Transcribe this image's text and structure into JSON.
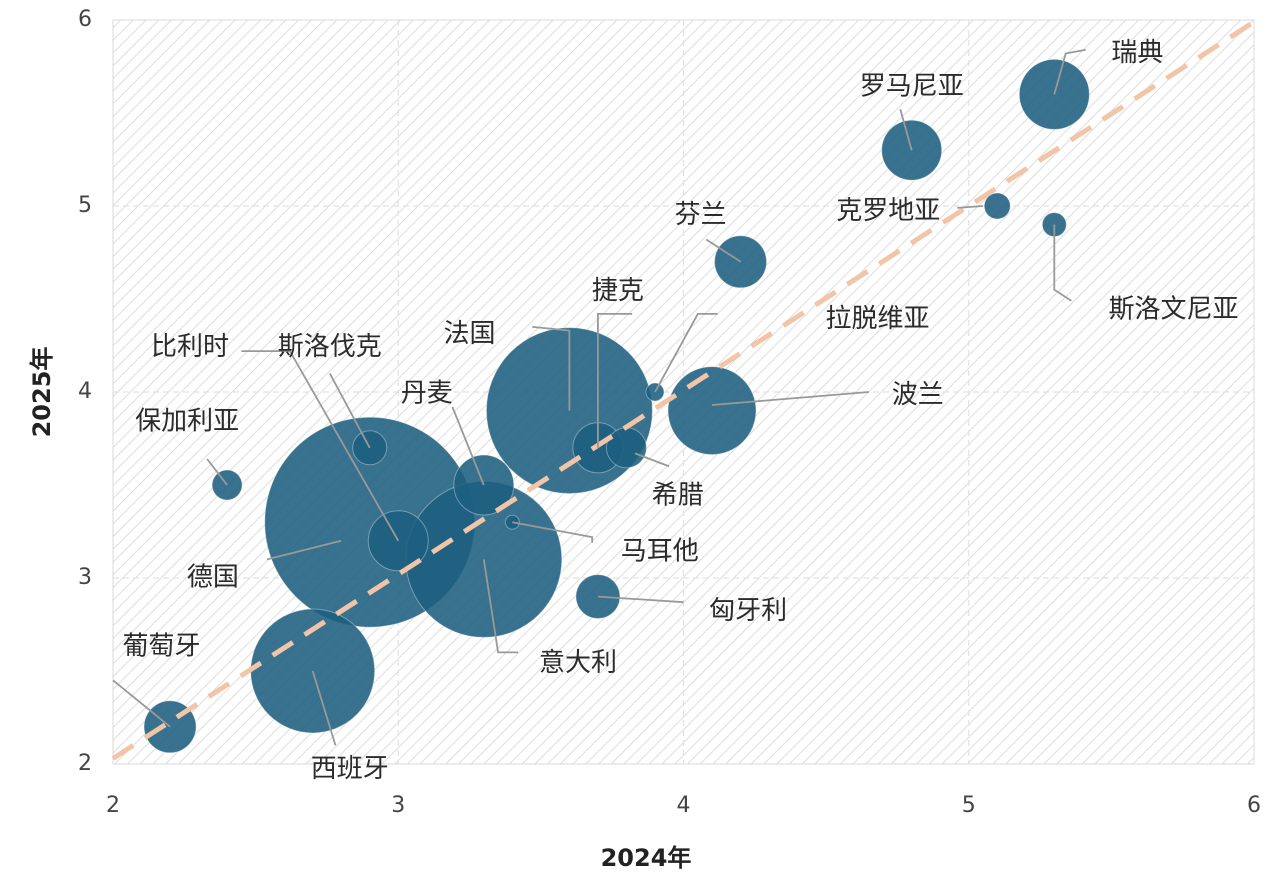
{
  "chart_data": {
    "type": "scatter",
    "xlabel": "2024年",
    "ylabel": "2025年",
    "xlim": [
      2,
      6
    ],
    "ylim": [
      2,
      6
    ],
    "xticks": [
      "2",
      "3",
      "4",
      "5",
      "6"
    ],
    "yticks": [
      "2",
      "3",
      "4",
      "5",
      "6"
    ],
    "grid": true,
    "reference_line": "y = x",
    "colors": {
      "bubble": "#1d5f80",
      "reference_line": "#f2c4a8",
      "leader": "#999999",
      "hatch": "#cfcfcf"
    },
    "points": [
      {
        "label": "瑞典",
        "x": 5.3,
        "y": 5.6,
        "size": 35
      },
      {
        "label": "罗马尼亚",
        "x": 4.8,
        "y": 5.3,
        "size": 30
      },
      {
        "label": "克罗地亚",
        "x": 5.1,
        "y": 5.0,
        "size": 13
      },
      {
        "label": "斯洛文尼亚",
        "x": 5.3,
        "y": 4.9,
        "size": 12
      },
      {
        "label": "芬兰",
        "x": 4.2,
        "y": 4.7,
        "size": 26
      },
      {
        "label": "拉脱维亚",
        "x": 3.9,
        "y": 4.0,
        "size": 9
      },
      {
        "label": "波兰",
        "x": 4.1,
        "y": 3.9,
        "size": 44
      },
      {
        "label": "法国",
        "x": 3.6,
        "y": 3.9,
        "size": 83
      },
      {
        "label": "捷克",
        "x": 3.7,
        "y": 3.7,
        "size": 25
      },
      {
        "label": "希腊",
        "x": 3.8,
        "y": 3.7,
        "size": 20
      },
      {
        "label": "比利时",
        "x": 3.0,
        "y": 3.2,
        "size": 30
      },
      {
        "label": "斯洛伐克",
        "x": 2.9,
        "y": 3.7,
        "size": 17
      },
      {
        "label": "丹麦",
        "x": 3.3,
        "y": 3.5,
        "size": 30
      },
      {
        "label": "保加利亚",
        "x": 2.4,
        "y": 3.5,
        "size": 15
      },
      {
        "label": "德国",
        "x": 2.9,
        "y": 3.3,
        "size": 105
      },
      {
        "label": "马耳他",
        "x": 3.4,
        "y": 3.3,
        "size": 7
      },
      {
        "label": "意大利",
        "x": 3.3,
        "y": 3.1,
        "size": 78
      },
      {
        "label": "匈牙利",
        "x": 3.7,
        "y": 2.9,
        "size": 22
      },
      {
        "label": "葡萄牙",
        "x": 2.2,
        "y": 2.2,
        "size": 26
      },
      {
        "label": "西班牙",
        "x": 2.7,
        "y": 2.5,
        "size": 62
      }
    ]
  }
}
